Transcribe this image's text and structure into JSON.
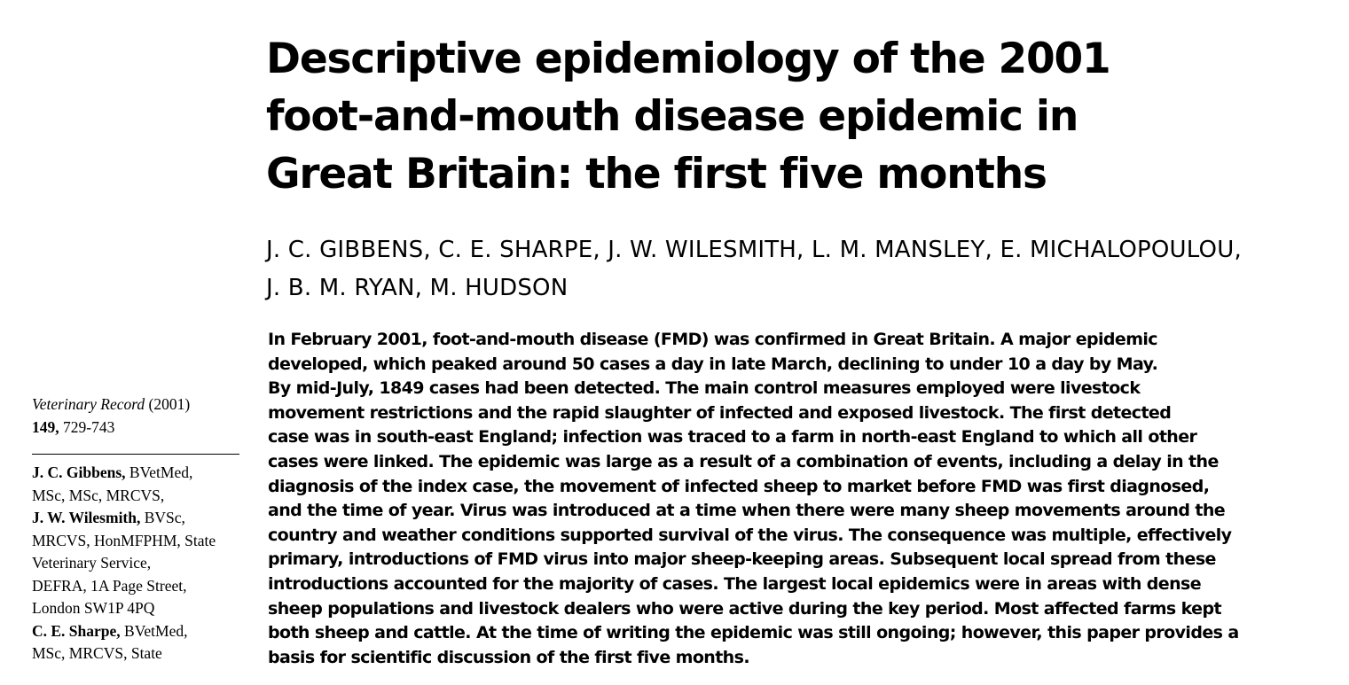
{
  "title_lines": [
    "Descriptive epidemiology of the 2001",
    "foot-and-mouth disease epidemic in",
    "Great Britain: the first five months"
  ],
  "authors_lines": [
    "J. C. GIBBENS, C. E. SHARPE, J. W. WILESMITH, L. M. MANSLEY, E. MICHALOPOULOU,",
    "J. B. M. RYAN, M. HUDSON"
  ],
  "abstract_lines": [
    "In February 2001, foot-and-mouth disease (FMD) was confirmed in Great Britain. A major epidemic",
    "developed, which peaked around 50 cases a day in late March, declining to under 10 a day by May.",
    "By mid-July, 1849 cases had been detected. The main control measures employed were livestock",
    "movement restrictions and the rapid slaughter of infected and exposed livestock. The first detected",
    "case was in south-east England; infection was traced to a farm in north-east England to which all other",
    "cases were linked. The epidemic was large as a result of a combination of events, including a delay in the",
    "diagnosis of the index case, the movement of infected sheep to market before FMD was first diagnosed,",
    "and the time of year. Virus was introduced at a time when there were many sheep movements around the",
    "country and weather conditions supported survival of the virus. The consequence was multiple, effectively",
    "primary, introductions of FMD virus into major sheep-keeping areas. Subsequent local spread from these",
    "introductions accounted for the majority of cases. The largest local epidemics were in areas with dense",
    "sheep populations and livestock dealers who were active during the key period. Most affected farms kept",
    "both sheep and cattle. At the time of writing the epidemic was still ongoing; however, this paper provides a",
    "basis for scientific discussion of the first five months."
  ],
  "citation": {
    "journal": "Veterinary Record",
    "year": " (2001)",
    "volume": "149,",
    "pages": " 729-743"
  },
  "affiliation": [
    {
      "name": "J. C. Gibbens,",
      "rest": " BVetMed,"
    },
    {
      "name": "",
      "rest": "MSc, MSc, MRCVS,"
    },
    {
      "name": "J. W. Wilesmith,",
      "rest": " BVSc,"
    },
    {
      "name": "",
      "rest": "MRCVS, HonMFPHM, State"
    },
    {
      "name": "",
      "rest": "Veterinary Service,"
    },
    {
      "name": "",
      "rest": "DEFRA, 1A Page Street,"
    },
    {
      "name": "",
      "rest": "London SW1P 4PQ"
    },
    {
      "name": "C. E. Sharpe,",
      "rest": " BVetMed,"
    },
    {
      "name": "",
      "rest": "MSc, MRCVS, State"
    }
  ]
}
